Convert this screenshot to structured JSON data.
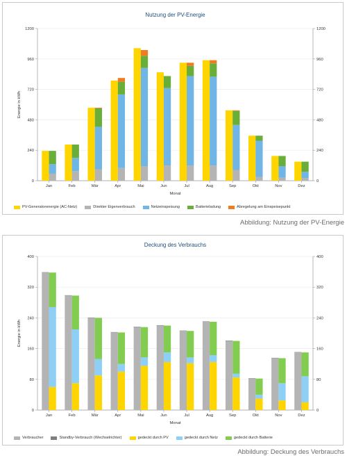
{
  "charts": [
    {
      "id": "pv",
      "chart_data": {
        "type": "bar",
        "title": "Nutzung der PV-Energie",
        "xlabel": "Monat",
        "ylabel": "Energie in kWh",
        "ylim": [
          0,
          1200
        ],
        "yticks": [
          0,
          240,
          480,
          720,
          960,
          1200
        ],
        "grid": true,
        "legend_position": "bottom",
        "categories": [
          "Jan",
          "Feb",
          "Mär",
          "Apr",
          "Mai",
          "Jun",
          "Jul",
          "Aug",
          "Sep",
          "Okt",
          "Nov",
          "Dez"
        ],
        "groups": [
          {
            "stack": "left",
            "series": [
              {
                "name": "PV-Generatorenergie (AC-Netz)",
                "color": "#FFD500",
                "values": [
                  235,
                  285,
                  575,
                  790,
                  1045,
                  855,
                  930,
                  950,
                  555,
                  355,
                  195,
                  150
                ]
              }
            ]
          },
          {
            "stack": "right",
            "series": [
              {
                "name": "Direkter Eigenverbrauch",
                "color": "#B4B4B4",
                "values": [
                  55,
                  75,
                  90,
                  100,
                  115,
                  120,
                  120,
                  120,
                  85,
                  30,
                  25,
                  20
                ]
              },
              {
                "name": "Netzeinspeisung",
                "color": "#6FB5E6",
                "values": [
                  75,
                  105,
                  335,
                  580,
                  775,
                  610,
                  705,
                  700,
                  355,
                  285,
                  90,
                  50
                ]
              },
              {
                "name": "Batterieladung",
                "color": "#6AAE3A",
                "values": [
                  105,
                  105,
                  145,
                  100,
                  95,
                  95,
                  80,
                  105,
                  110,
                  40,
                  80,
                  80
                ]
              },
              {
                "name": "Abregelung am Einspeisepunkt",
                "color": "#F07C22",
                "values": [
                  0,
                  0,
                  5,
                  30,
                  45,
                  0,
                  25,
                  25,
                  5,
                  0,
                  0,
                  0
                ]
              }
            ]
          }
        ]
      },
      "caption": "Abbildung: Nutzung der PV-Energie"
    },
    {
      "id": "verbrauch",
      "chart_data": {
        "type": "bar",
        "title": "Deckung des Verbrauchs",
        "xlabel": "Monat",
        "ylabel": "Energie in kWh",
        "ylim": [
          0,
          400
        ],
        "yticks": [
          0,
          80,
          160,
          240,
          320,
          400
        ],
        "grid": true,
        "legend_position": "bottom",
        "categories": [
          "Jan",
          "Feb",
          "Mär",
          "Apr",
          "Mai",
          "Jun",
          "Jul",
          "Aug",
          "Sep",
          "Okt",
          "Nov",
          "Dez"
        ],
        "groups": [
          {
            "stack": "left",
            "series": [
              {
                "name": "Verbraucher",
                "color": "#B4B4B4",
                "values": [
                  358,
                  298,
                  240,
                  202,
                  216,
                  220,
                  206,
                  230,
                  180,
                  82,
                  135,
                  150
                ]
              },
              {
                "name": "Standby-Verbrauch (Wechselrichter)",
                "color": "#7F7F7F",
                "values": [
                  1,
                  1,
                  1,
                  1,
                  1,
                  1,
                  1,
                  1,
                  1,
                  1,
                  1,
                  1
                ]
              }
            ]
          },
          {
            "stack": "right",
            "series": [
              {
                "name": "gedeckt durch PV",
                "color": "#FFD500",
                "values": [
                  60,
                  70,
                  90,
                  100,
                  115,
                  125,
                  122,
                  125,
                  85,
                  30,
                  25,
                  20
                ]
              },
              {
                "name": "gedeckt durch Netz",
                "color": "#8ED0F5",
                "values": [
                  208,
                  140,
                  43,
                  20,
                  22,
                  25,
                  15,
                  18,
                  10,
                  10,
                  45,
                  68
                ]
              },
              {
                "name": "gedeckt durch Batterie",
                "color": "#82CC4F",
                "values": [
                  90,
                  88,
                  107,
                  82,
                  79,
                  70,
                  69,
                  87,
                  85,
                  42,
                  65,
                  62
                ]
              }
            ]
          }
        ]
      },
      "caption": "Abbildung: Deckung des Verbrauchs"
    }
  ]
}
